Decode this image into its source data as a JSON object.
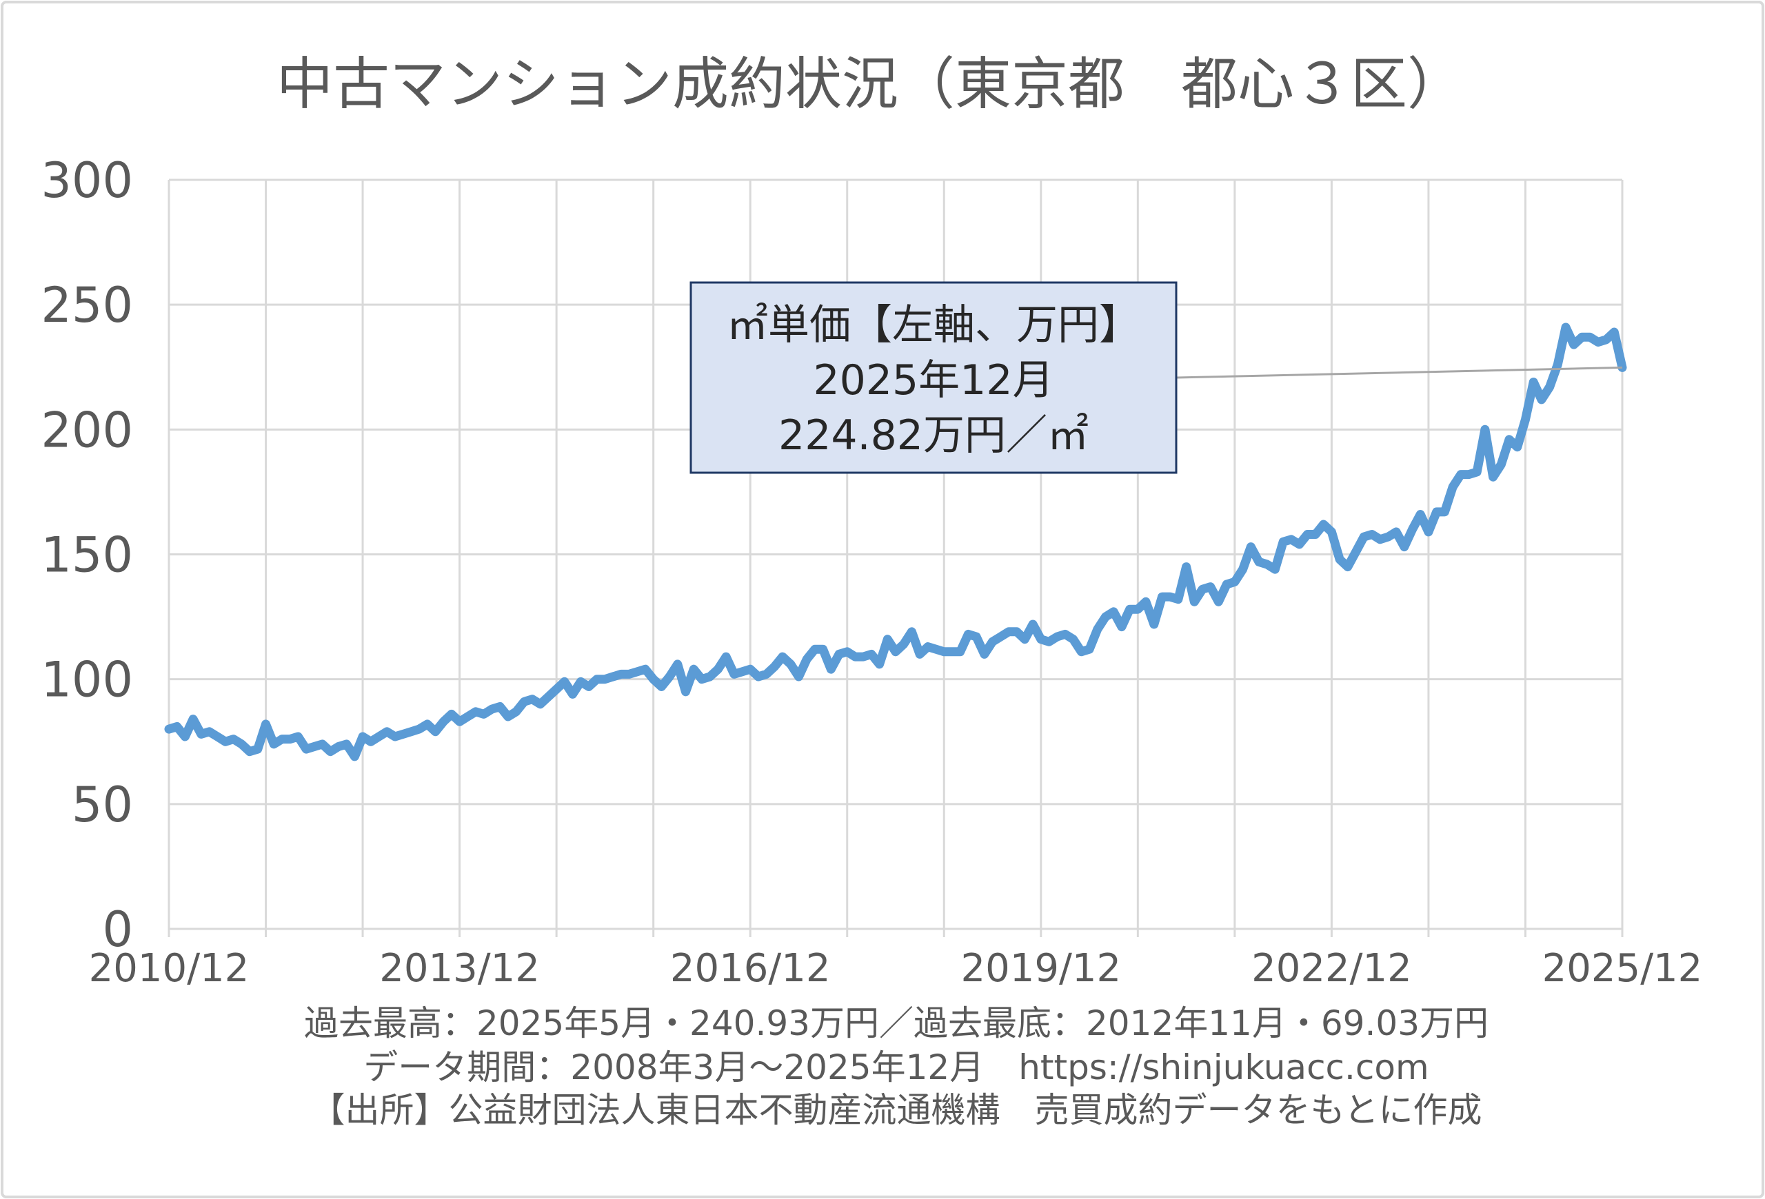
{
  "chart_data": {
    "type": "line",
    "title": "中古マンション成約状況（東京都　都心３区）",
    "ylim": [
      0,
      300
    ],
    "y_ticks": [
      0,
      50,
      100,
      150,
      200,
      250,
      300
    ],
    "x_ticks": [
      "2010/12",
      "2013/12",
      "2016/12",
      "2019/12",
      "2022/12",
      "2025/12"
    ],
    "grid": true,
    "x": [
      "2010/12",
      "2011/01",
      "2011/02",
      "2011/03",
      "2011/04",
      "2011/05",
      "2011/06",
      "2011/07",
      "2011/08",
      "2011/09",
      "2011/10",
      "2011/11",
      "2011/12",
      "2012/01",
      "2012/02",
      "2012/03",
      "2012/04",
      "2012/05",
      "2012/06",
      "2012/07",
      "2012/08",
      "2012/09",
      "2012/10",
      "2012/11",
      "2012/12",
      "2013/01",
      "2013/02",
      "2013/03",
      "2013/04",
      "2013/05",
      "2013/06",
      "2013/07",
      "2013/08",
      "2013/09",
      "2013/10",
      "2013/11",
      "2013/12",
      "2014/01",
      "2014/02",
      "2014/03",
      "2014/04",
      "2014/05",
      "2014/06",
      "2014/07",
      "2014/08",
      "2014/09",
      "2014/10",
      "2014/11",
      "2014/12",
      "2015/01",
      "2015/02",
      "2015/03",
      "2015/04",
      "2015/05",
      "2015/06",
      "2015/07",
      "2015/08",
      "2015/09",
      "2015/10",
      "2015/11",
      "2015/12",
      "2016/01",
      "2016/02",
      "2016/03",
      "2016/04",
      "2016/05",
      "2016/06",
      "2016/07",
      "2016/08",
      "2016/09",
      "2016/10",
      "2016/11",
      "2016/12",
      "2017/01",
      "2017/02",
      "2017/03",
      "2017/04",
      "2017/05",
      "2017/06",
      "2017/07",
      "2017/08",
      "2017/09",
      "2017/10",
      "2017/11",
      "2017/12",
      "2018/01",
      "2018/02",
      "2018/03",
      "2018/04",
      "2018/05",
      "2018/06",
      "2018/07",
      "2018/08",
      "2018/09",
      "2018/10",
      "2018/11",
      "2018/12",
      "2019/01",
      "2019/02",
      "2019/03",
      "2019/04",
      "2019/05",
      "2019/06",
      "2019/07",
      "2019/08",
      "2019/09",
      "2019/10",
      "2019/11",
      "2019/12",
      "2020/01",
      "2020/02",
      "2020/03",
      "2020/04",
      "2020/05",
      "2020/06",
      "2020/07",
      "2020/08",
      "2020/09",
      "2020/10",
      "2020/11",
      "2020/12",
      "2021/01",
      "2021/02",
      "2021/03",
      "2021/04",
      "2021/05",
      "2021/06",
      "2021/07",
      "2021/08",
      "2021/09",
      "2021/10",
      "2021/11",
      "2021/12",
      "2022/01",
      "2022/02",
      "2022/03",
      "2022/04",
      "2022/05",
      "2022/06",
      "2022/07",
      "2022/08",
      "2022/09",
      "2022/10",
      "2022/11",
      "2022/12",
      "2023/01",
      "2023/02",
      "2023/03",
      "2023/04",
      "2023/05",
      "2023/06",
      "2023/07",
      "2023/08",
      "2023/09",
      "2023/10",
      "2023/11",
      "2023/12",
      "2024/01",
      "2024/02",
      "2024/03",
      "2024/04",
      "2024/05",
      "2024/06",
      "2024/07",
      "2024/08",
      "2024/09",
      "2024/10",
      "2024/11",
      "2024/12",
      "2025/01",
      "2025/02",
      "2025/03",
      "2025/04",
      "2025/05",
      "2025/06",
      "2025/07",
      "2025/08",
      "2025/09",
      "2025/10",
      "2025/11",
      "2025/12"
    ],
    "series": [
      {
        "values": [
          80,
          81,
          77,
          84,
          78,
          79,
          77,
          75,
          76,
          74,
          71,
          72,
          82,
          74,
          76,
          76,
          77,
          72,
          73,
          74,
          71,
          73,
          74,
          69.03,
          77,
          75,
          77,
          79,
          77,
          78,
          79,
          80,
          82,
          79,
          83,
          86,
          83,
          85,
          87,
          86,
          88,
          89,
          85,
          87,
          91,
          92,
          90,
          93,
          96,
          99,
          94,
          99,
          97,
          100,
          100,
          101,
          102,
          102,
          103,
          104,
          100,
          97,
          101,
          106,
          95,
          104,
          100,
          101,
          104,
          109,
          102,
          103,
          104,
          101,
          102,
          105,
          109,
          106,
          101,
          108,
          112,
          112,
          104,
          110,
          111,
          109,
          109,
          110,
          106,
          116,
          111,
          114,
          119,
          110,
          113,
          112,
          111,
          111,
          111,
          118,
          117,
          110,
          115,
          117,
          119,
          119,
          116,
          122,
          116,
          115,
          117,
          118,
          116,
          111,
          112,
          120,
          125,
          127,
          121,
          128,
          128,
          131,
          122,
          133,
          133,
          132,
          145,
          131,
          136,
          137,
          131,
          138,
          139,
          144,
          153,
          147,
          146,
          144,
          155,
          156,
          154,
          158,
          158,
          162,
          159,
          148,
          145,
          151,
          157,
          158,
          156,
          157,
          159,
          153,
          160,
          166,
          159,
          167,
          167,
          177,
          182,
          182,
          183,
          200,
          181,
          186,
          196,
          193,
          204,
          219,
          212,
          217,
          226,
          240.93,
          234,
          237,
          237,
          235,
          236,
          239,
          224.82
        ]
      }
    ],
    "callout": {
      "lines": [
        "㎡単価【左軸、万円】",
        "2025年12月",
        "224.82万円／㎡"
      ],
      "target": "2025/12"
    }
  },
  "footer": {
    "record": "過去最高：2025年5月・240.93万円／過去最底：2012年11月・69.03万円",
    "period": "データ期間：2008年3月～2025年12月　https://shinjukuacc.com",
    "source": "【出所】公益財団法人東日本不動産流通機構　売買成約データをもとに作成"
  },
  "colors": {
    "line": "#5b9bd5",
    "grid": "#d9d9d9",
    "text": "#595959",
    "callout_fill": "#dae3f3",
    "callout_border": "#1f3864",
    "leader": "#a6a6a6"
  }
}
